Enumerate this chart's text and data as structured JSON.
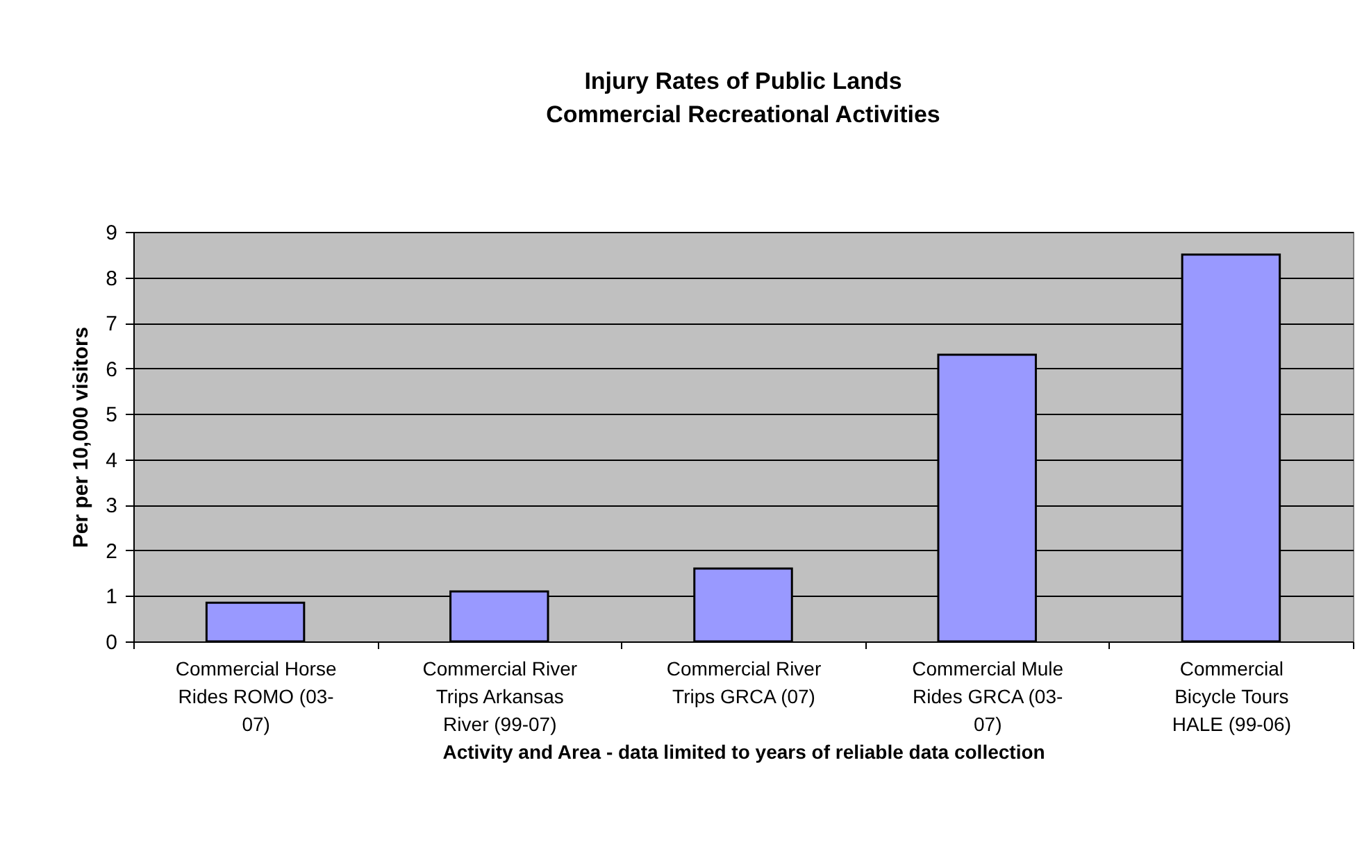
{
  "chart_data": {
    "type": "bar",
    "title": "Injury Rates of Public Lands\nCommercial Recreational Activities",
    "xlabel": "Activity and Area - data limited to years of reliable data collection",
    "ylabel": "Per per 10,000 visitors",
    "categories": [
      "Commercial Horse Rides ROMO (03-07)",
      "Commercial River Trips Arkansas River (99-07)",
      "Commercial River Trips GRCA (07)",
      "Commercial Mule Rides GRCA (03-07)",
      "Commercial Bicycle Tours HALE (99-06)"
    ],
    "values": [
      0.85,
      1.1,
      1.6,
      6.3,
      8.5
    ],
    "color": "#9999ff",
    "ylim": [
      0,
      9
    ],
    "yticks": [
      0,
      1,
      2,
      3,
      4,
      5,
      6,
      7,
      8,
      9
    ],
    "grid": "y"
  }
}
